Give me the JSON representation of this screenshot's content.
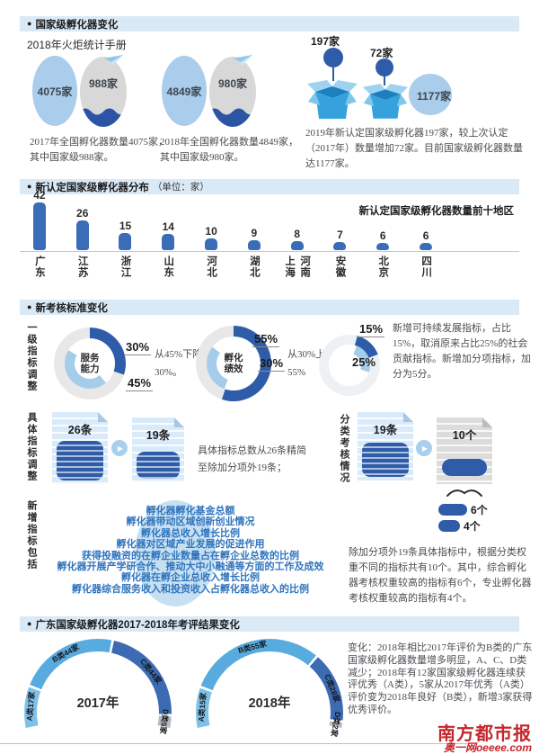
{
  "colors": {
    "band_bg": "#d9e9f6",
    "dark_blue": "#2e5ca9",
    "bar_blue": "#3a6db7",
    "light_blue": "#a9cdeb",
    "donut_dark": "#2e5ca9",
    "donut_light": "#a5cce9",
    "arc_a": "#7fc0e8",
    "arc_b": "#58abdf",
    "arc_c": "#3c6ab3",
    "arc_d": "#b7bcc2",
    "logo_red": "#c5262b"
  },
  "icons": {
    "bullet": "●",
    "play": "▶"
  },
  "sections": {
    "s1": {
      "header": "国家级孵化器变化",
      "subtitle": "2018年火炬统计手册",
      "groups": [
        {
          "big": "4075家",
          "small": "988家",
          "caption": "2017年全国孵化器数量4075家，其中国家级988家。"
        },
        {
          "big": "4849家",
          "small": "980家",
          "caption": "2018年全国孵化器数量4849家，其中国家级980家。"
        }
      ],
      "right": {
        "balloon1": "197家",
        "balloon2": "72家",
        "ellipse": "1177家",
        "caption": "2019年新认定国家级孵化器197家，较上次认定（2017年）数量增加72家。目前国家级孵化器数量达1177家。"
      }
    },
    "s2": {
      "header": "新认定国家级孵化器分布",
      "unit": "（单位：家）"
    },
    "s3": {
      "header": "新考核标准变化",
      "row1_label": "一级指标调整",
      "row2_label": "具体指标调整",
      "row3_label": "新增指标包括",
      "row2_right_label": "分类考核情况",
      "docs1": {
        "from": "26条",
        "to": "19条",
        "note": "具体指标总数从26条精简至除加分项外19条；"
      },
      "docs2": {
        "from": "19条",
        "to": "10个",
        "pill1": "6个",
        "pill2": "4个",
        "note": "除加分项外19条具体指标中，根据分类权重不同的指标共有10个。其中，综合孵化器考核权重较高的指标有6个，专业孵化器考核权重较高的指标有4个。"
      },
      "new_indicators": [
        "孵化器孵化基金总额",
        "孵化器带动区域创新创业情况",
        "孵化器总收入增长比例",
        "孵化器对区域产业发展的促进作用",
        "获得投融资的在孵企业数量占在孵企业总数的比例",
        "孵化器开展产学研合作、推动大中小融通等方面的工作及成效",
        "孵化器在孵企业总收入增长比例",
        "孵化器综合服务收入和投资收入占孵化器总收入的比例"
      ]
    },
    "s4": {
      "header": "广东国家级孵化器2017-2018年考评结果变化",
      "note": "变化：2018年相比2017年评价为B类的广东国家级孵化器数量增多明显，A、C、D类减少；2018年有12家国家级孵化器连续获评优秀（A类），5家从2017年优秀（A类）评价变为2018年良好（B类），新增3家获得优秀评价。"
    },
    "footer": {
      "logo": "南方都市报",
      "sub": "奥一网oeeee.com"
    }
  },
  "chart_data": [
    {
      "type": "bar",
      "title": "新认定国家级孵化器分布",
      "unit": "家",
      "annotation": "新认定国家级孵化器数量前十地区",
      "categories": [
        "广东",
        "江苏",
        "浙江",
        "山东",
        "河北",
        "湖北",
        "上海/河南",
        "安徽",
        "北京",
        "四川"
      ],
      "values": [
        42,
        26,
        15,
        14,
        10,
        9,
        8,
        7,
        6,
        6
      ],
      "ylim": [
        0,
        42
      ],
      "grid": false
    },
    {
      "type": "donut",
      "center_label": "服务能力",
      "outer_pct": 30,
      "inner_pct": 45,
      "outer_label": "30%",
      "inner_label": "45%",
      "note": "从45%下降为30%。",
      "outer_from": 0,
      "inner_from": 140,
      "base_color": "#e8e8e8"
    },
    {
      "type": "donut",
      "center_label": "孵化绩效",
      "outer_pct": 55,
      "inner_pct": 30,
      "outer_label": "55%",
      "inner_label": "30%",
      "note": "从30%上升至55%",
      "outer_from": 0,
      "inner_from": 200,
      "base_color": "#e8e8e8"
    },
    {
      "type": "donut",
      "center_label": "",
      "outer_pct": 15,
      "inner_pct": 25,
      "outer_label": "15%",
      "inner_label": "25%",
      "note": "新增可持续发展指标，占比15%，取消原来占比25%的社会贡献指标。新增加分项指标，加分为5分。",
      "outer_from": 15,
      "inner_from": 20,
      "base_color": "#eef1f4"
    },
    {
      "type": "arc",
      "year": "2017年",
      "segments": [
        {
          "label": "A类17家",
          "value": 17,
          "color_key": "arc_a"
        },
        {
          "label": "B类44家",
          "value": 44,
          "color_key": "arc_b"
        },
        {
          "label": "C类44家",
          "value": 44,
          "color_key": "arc_c"
        },
        {
          "label": "D类5家",
          "value": 5,
          "color_key": "arc_d"
        }
      ]
    },
    {
      "type": "arc",
      "year": "2018年",
      "segments": [
        {
          "label": "A类15家",
          "value": 15,
          "color_key": "arc_a"
        },
        {
          "label": "B类55家",
          "value": 55,
          "color_key": "arc_b"
        },
        {
          "label": "C类28家",
          "value": 28,
          "color_key": "arc_c"
        },
        {
          "label": "D类2家",
          "value": 2,
          "color_key": "arc_d"
        }
      ]
    }
  ]
}
